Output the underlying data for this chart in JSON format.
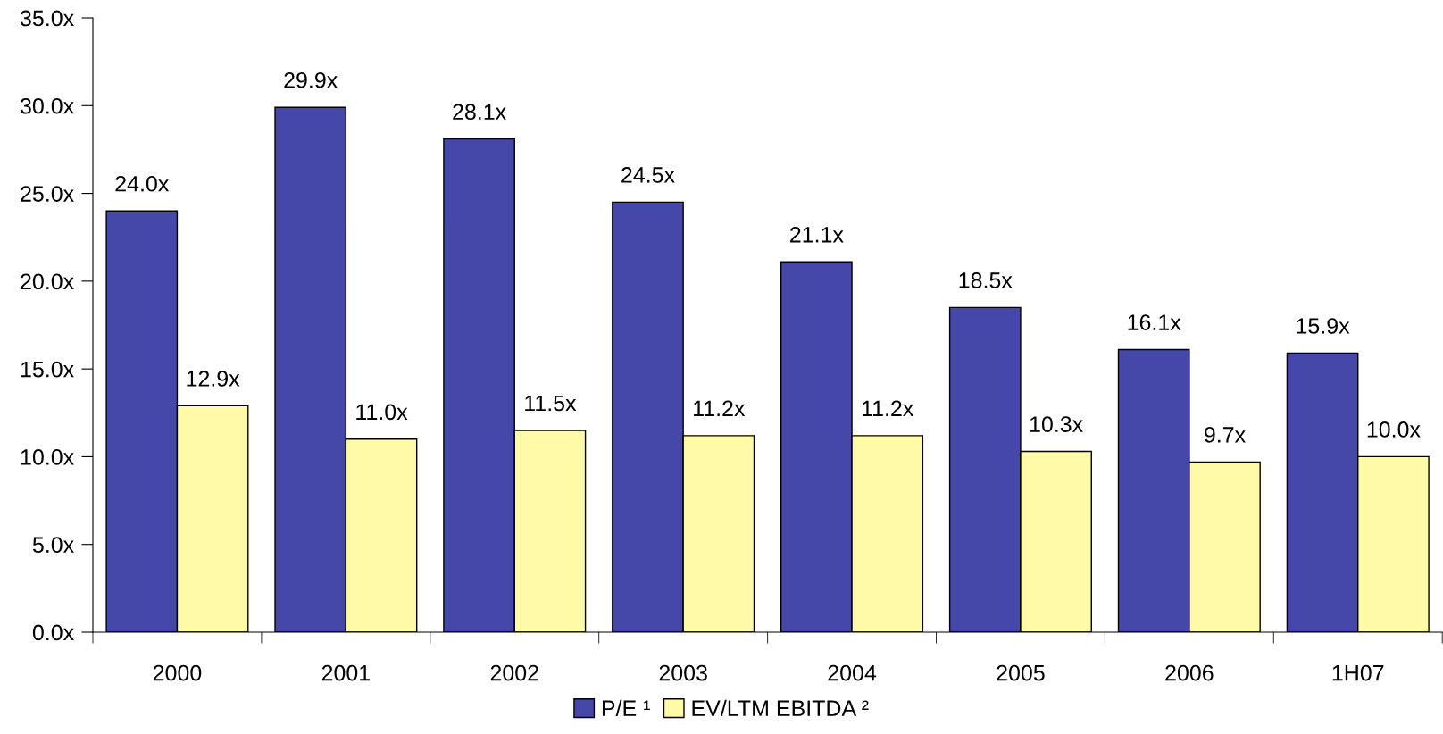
{
  "chart_data": {
    "type": "bar",
    "categories": [
      "2000",
      "2001",
      "2002",
      "2003",
      "2004",
      "2005",
      "2006",
      "1H07"
    ],
    "series": [
      {
        "name": "P/E ¹",
        "color": "#4548a8",
        "values": [
          24.0,
          29.9,
          28.1,
          24.5,
          21.1,
          18.5,
          16.1,
          15.9
        ],
        "value_labels": [
          "24.0x",
          "29.9x",
          "28.1x",
          "24.5x",
          "21.1x",
          "18.5x",
          "16.1x",
          "15.9x"
        ]
      },
      {
        "name": "EV/LTM EBITDA ²",
        "color": "#fffaa8",
        "values": [
          12.9,
          11.0,
          11.5,
          11.2,
          11.2,
          10.3,
          9.7,
          10.0
        ],
        "value_labels": [
          "12.9x",
          "11.0x",
          "11.5x",
          "11.2x",
          "11.2x",
          "10.3x",
          "9.7x",
          "10.0x"
        ]
      }
    ],
    "ylim": [
      0,
      35
    ],
    "yticks": [
      {
        "value": 0,
        "label": "0.0x"
      },
      {
        "value": 5,
        "label": "5.0x"
      },
      {
        "value": 10,
        "label": "10.0x"
      },
      {
        "value": 15,
        "label": "15.0x"
      },
      {
        "value": 20,
        "label": "20.0x"
      },
      {
        "value": 25,
        "label": "25.0x"
      },
      {
        "value": 30,
        "label": "30.0x"
      },
      {
        "value": 35,
        "label": "35.0x"
      }
    ],
    "legend": "bottom",
    "grid": false
  }
}
